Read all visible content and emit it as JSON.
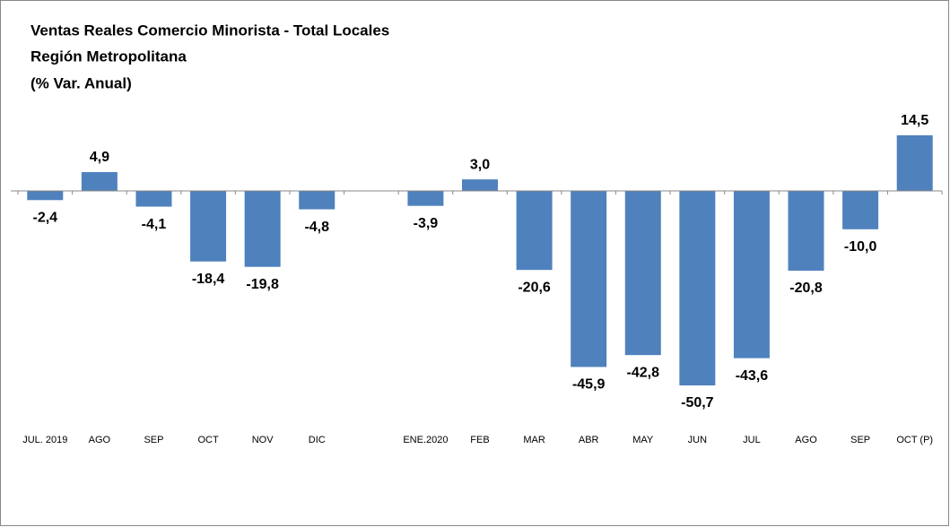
{
  "chart_data": {
    "type": "bar",
    "title": [
      "Ventas Reales Comercio Minorista - Total Locales",
      "Región Metropolitana",
      "(% Var. Anual)"
    ],
    "categories": [
      "JUL. 2019",
      "AGO",
      "SEP",
      "OCT",
      "NOV",
      "DIC",
      null,
      "ENE.2020",
      "FEB",
      "MAR",
      "ABR",
      "MAY",
      "JUN",
      "JUL",
      "AGO",
      "SEP",
      "OCT (P)"
    ],
    "values": [
      -2.4,
      4.9,
      -4.1,
      -18.4,
      -19.8,
      -4.8,
      null,
      -3.9,
      3.0,
      -20.6,
      -45.9,
      -42.8,
      -50.7,
      -43.6,
      -20.8,
      -10.0,
      14.5
    ],
    "value_labels": [
      "-2,4",
      "4,9",
      "-4,1",
      "-18,4",
      "-19,8",
      "-4,8",
      null,
      "-3,9",
      "3,0",
      "-20,6",
      "-45,9",
      "-42,8",
      "-50,7",
      "-43,6",
      "-20,8",
      "-10,0",
      "14,5"
    ],
    "color": "#4f81bd",
    "ylim": [
      -55,
      20
    ]
  }
}
